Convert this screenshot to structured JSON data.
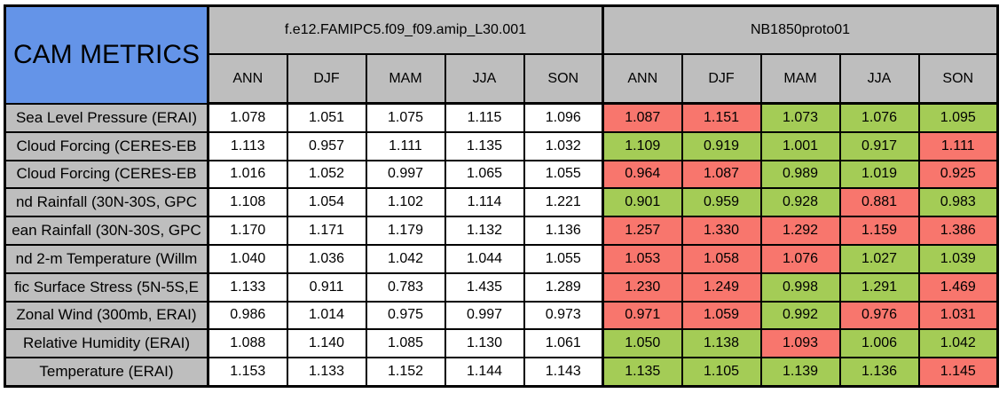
{
  "colors": {
    "blue": "#6494E8",
    "gray": "#BEBEBE",
    "red": "#F8766D",
    "green": "#A4CC56"
  },
  "table": {
    "corner_label": "CAM METRICS",
    "groups": [
      {
        "label": "f.e12.FAMIPC5.f09_f09.amip_L30.001"
      },
      {
        "label": "NB1850proto01"
      }
    ],
    "seasons": [
      "ANN",
      "DJF",
      "MAM",
      "JJA",
      "SON"
    ],
    "rows": [
      {
        "label": "Sea Level Pressure (ERAI)",
        "group1": [
          "1.078",
          "1.051",
          "1.075",
          "1.115",
          "1.096"
        ],
        "group2": [
          {
            "v": "1.087",
            "c": "red"
          },
          {
            "v": "1.151",
            "c": "red"
          },
          {
            "v": "1.073",
            "c": "green"
          },
          {
            "v": "1.076",
            "c": "green"
          },
          {
            "v": "1.095",
            "c": "green"
          }
        ]
      },
      {
        "label": "Cloud Forcing (CERES-EB",
        "group1": [
          "1.113",
          "0.957",
          "1.111",
          "1.135",
          "1.032"
        ],
        "group2": [
          {
            "v": "1.109",
            "c": "green"
          },
          {
            "v": "0.919",
            "c": "green"
          },
          {
            "v": "1.001",
            "c": "green"
          },
          {
            "v": "0.917",
            "c": "green"
          },
          {
            "v": "1.111",
            "c": "red"
          }
        ]
      },
      {
        "label": "Cloud Forcing (CERES-EB",
        "group1": [
          "1.016",
          "1.052",
          "0.997",
          "1.065",
          "1.055"
        ],
        "group2": [
          {
            "v": "0.964",
            "c": "red"
          },
          {
            "v": "1.087",
            "c": "red"
          },
          {
            "v": "0.989",
            "c": "green"
          },
          {
            "v": "1.019",
            "c": "green"
          },
          {
            "v": "0.925",
            "c": "red"
          }
        ]
      },
      {
        "label": "nd Rainfall (30N-30S, GPC",
        "group1": [
          "1.108",
          "1.054",
          "1.102",
          "1.114",
          "1.221"
        ],
        "group2": [
          {
            "v": "0.901",
            "c": "green"
          },
          {
            "v": "0.959",
            "c": "green"
          },
          {
            "v": "0.928",
            "c": "green"
          },
          {
            "v": "0.881",
            "c": "red"
          },
          {
            "v": "0.983",
            "c": "green"
          }
        ]
      },
      {
        "label": "ean Rainfall (30N-30S, GPC",
        "group1": [
          "1.170",
          "1.171",
          "1.179",
          "1.132",
          "1.136"
        ],
        "group2": [
          {
            "v": "1.257",
            "c": "red"
          },
          {
            "v": "1.330",
            "c": "red"
          },
          {
            "v": "1.292",
            "c": "red"
          },
          {
            "v": "1.159",
            "c": "red"
          },
          {
            "v": "1.386",
            "c": "red"
          }
        ]
      },
      {
        "label": "nd 2-m Temperature (Willm",
        "group1": [
          "1.040",
          "1.036",
          "1.042",
          "1.044",
          "1.055"
        ],
        "group2": [
          {
            "v": "1.053",
            "c": "red"
          },
          {
            "v": "1.058",
            "c": "red"
          },
          {
            "v": "1.076",
            "c": "red"
          },
          {
            "v": "1.027",
            "c": "green"
          },
          {
            "v": "1.039",
            "c": "green"
          }
        ]
      },
      {
        "label": "fic Surface Stress (5N-5S,E",
        "group1": [
          "1.133",
          "0.911",
          "0.783",
          "1.435",
          "1.289"
        ],
        "group2": [
          {
            "v": "1.230",
            "c": "red"
          },
          {
            "v": "1.249",
            "c": "red"
          },
          {
            "v": "0.998",
            "c": "green"
          },
          {
            "v": "1.291",
            "c": "green"
          },
          {
            "v": "1.469",
            "c": "red"
          }
        ]
      },
      {
        "label": "Zonal Wind (300mb, ERAI)",
        "group1": [
          "0.986",
          "1.014",
          "0.975",
          "0.997",
          "0.973"
        ],
        "group2": [
          {
            "v": "0.971",
            "c": "red"
          },
          {
            "v": "1.059",
            "c": "red"
          },
          {
            "v": "0.992",
            "c": "green"
          },
          {
            "v": "0.976",
            "c": "red"
          },
          {
            "v": "1.031",
            "c": "red"
          }
        ]
      },
      {
        "label": "Relative Humidity (ERAI)",
        "group1": [
          "1.088",
          "1.140",
          "1.085",
          "1.130",
          "1.061"
        ],
        "group2": [
          {
            "v": "1.050",
            "c": "green"
          },
          {
            "v": "1.138",
            "c": "green"
          },
          {
            "v": "1.093",
            "c": "red"
          },
          {
            "v": "1.006",
            "c": "green"
          },
          {
            "v": "1.042",
            "c": "green"
          }
        ]
      },
      {
        "label": "Temperature (ERAI)",
        "group1": [
          "1.153",
          "1.133",
          "1.152",
          "1.144",
          "1.143"
        ],
        "group2": [
          {
            "v": "1.135",
            "c": "green"
          },
          {
            "v": "1.105",
            "c": "green"
          },
          {
            "v": "1.139",
            "c": "green"
          },
          {
            "v": "1.136",
            "c": "green"
          },
          {
            "v": "1.145",
            "c": "red"
          }
        ]
      }
    ]
  }
}
